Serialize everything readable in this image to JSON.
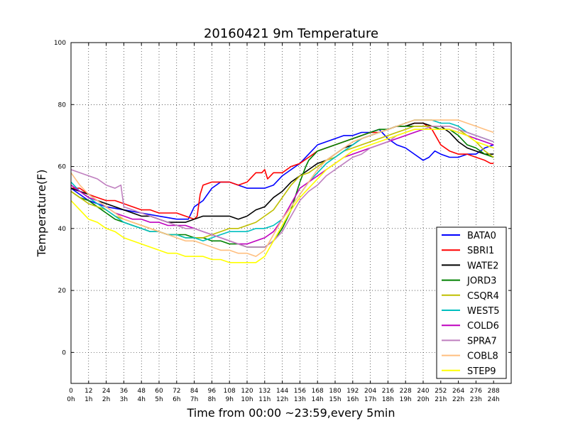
{
  "chart_data": {
    "type": "line",
    "title": "20160421 9m Temperature",
    "xlabel": "Time from 00:00 ~23:59,every 5min",
    "ylabel": "Temperature(F)",
    "xlim": [
      0,
      300
    ],
    "ylim": [
      -10,
      100
    ],
    "yticks": [
      "0",
      "20",
      "40",
      "60",
      "80",
      "100"
    ],
    "xticks": [
      {
        "value": 0,
        "line1": "0",
        "line2": "0h"
      },
      {
        "value": 12,
        "line1": "12",
        "line2": "1h"
      },
      {
        "value": 24,
        "line1": "24",
        "line2": "2h"
      },
      {
        "value": 36,
        "line1": "36",
        "line2": "3h"
      },
      {
        "value": 48,
        "line1": "48",
        "line2": "4h"
      },
      {
        "value": 60,
        "line1": "60",
        "line2": "5h"
      },
      {
        "value": 72,
        "line1": "72",
        "line2": "6h"
      },
      {
        "value": 84,
        "line1": "84",
        "line2": "7h"
      },
      {
        "value": 96,
        "line1": "96",
        "line2": "8h"
      },
      {
        "value": 108,
        "line1": "108",
        "line2": "9h"
      },
      {
        "value": 120,
        "line1": "120",
        "line2": "10h"
      },
      {
        "value": 132,
        "line1": "132",
        "line2": "11h"
      },
      {
        "value": 144,
        "line1": "144",
        "line2": "12h"
      },
      {
        "value": 156,
        "line1": "156",
        "line2": "13h"
      },
      {
        "value": 168,
        "line1": "168",
        "line2": "14h"
      },
      {
        "value": 180,
        "line1": "180",
        "line2": "15h"
      },
      {
        "value": 192,
        "line1": "192",
        "line2": "16h"
      },
      {
        "value": 204,
        "line1": "204",
        "line2": "17h"
      },
      {
        "value": 216,
        "line1": "216",
        "line2": "18h"
      },
      {
        "value": 228,
        "line1": "228",
        "line2": "19h"
      },
      {
        "value": 240,
        "line1": "240",
        "line2": "20h"
      },
      {
        "value": 252,
        "line1": "252",
        "line2": "21h"
      },
      {
        "value": 264,
        "line1": "264",
        "line2": "22h"
      },
      {
        "value": 276,
        "line1": "276",
        "line2": "23h"
      },
      {
        "value": 288,
        "line1": "288",
        "line2": "24h"
      }
    ],
    "grid": true,
    "legend_position": "lower-right",
    "series": [
      {
        "name": "BATA0",
        "color": "#0000ff",
        "x": [
          0,
          12,
          24,
          36,
          48,
          60,
          72,
          80,
          84,
          90,
          96,
          102,
          108,
          114,
          120,
          126,
          132,
          138,
          144,
          150,
          156,
          162,
          168,
          174,
          180,
          186,
          192,
          198,
          204,
          210,
          216,
          222,
          228,
          234,
          240,
          244,
          248,
          252,
          258,
          264,
          270,
          276,
          282,
          288
        ],
        "y": [
          53,
          49,
          47,
          46,
          45,
          44,
          43,
          43,
          47,
          49,
          53,
          55,
          55,
          54,
          53,
          53,
          53,
          54,
          57,
          59,
          61,
          64,
          67,
          68,
          69,
          70,
          70,
          71,
          71,
          72,
          69,
          67,
          66,
          64,
          62,
          63,
          65,
          64,
          63,
          63,
          64,
          64,
          66,
          67
        ]
      },
      {
        "name": "SBRI1",
        "color": "#ff0000",
        "x": [
          0,
          6,
          12,
          18,
          24,
          30,
          36,
          42,
          48,
          54,
          60,
          66,
          72,
          78,
          84,
          86,
          88,
          90,
          96,
          102,
          108,
          114,
          120,
          124,
          126,
          130,
          132,
          134,
          138,
          144,
          150,
          156,
          162,
          168,
          174,
          180,
          186,
          192,
          198,
          204,
          210,
          216,
          222,
          228,
          234,
          240,
          246,
          252,
          258,
          264,
          270,
          276,
          282,
          286,
          288
        ],
        "y": [
          53,
          53,
          51,
          50,
          49,
          49,
          48,
          47,
          46,
          46,
          45,
          45,
          45,
          44,
          43,
          44,
          51,
          54,
          55,
          55,
          55,
          54,
          55,
          57,
          58,
          58,
          59,
          56,
          58,
          58,
          60,
          61,
          63,
          65,
          66,
          67,
          68,
          69,
          70,
          71,
          71,
          72,
          73,
          73,
          74,
          74,
          72,
          67,
          65,
          64,
          64,
          63,
          62,
          61,
          61
        ]
      },
      {
        "name": "WATE2",
        "color": "#000000",
        "x": [
          0,
          6,
          12,
          18,
          24,
          30,
          36,
          42,
          48,
          54,
          60,
          66,
          72,
          78,
          84,
          90,
          96,
          102,
          108,
          114,
          120,
          126,
          132,
          138,
          144,
          150,
          156,
          162,
          168,
          174,
          180,
          186,
          192,
          198,
          204,
          210,
          216,
          222,
          228,
          234,
          240,
          246,
          252,
          258,
          264,
          270,
          276,
          282,
          288
        ],
        "y": [
          53,
          52,
          51,
          49,
          48,
          47,
          46,
          45,
          44,
          44,
          43,
          42,
          42,
          42,
          43,
          44,
          44,
          44,
          44,
          43,
          44,
          46,
          47,
          50,
          52,
          55,
          57,
          59,
          61,
          62,
          64,
          66,
          67,
          69,
          70,
          71,
          72,
          73,
          73,
          74,
          74,
          73,
          73,
          71,
          68,
          66,
          65,
          64,
          64
        ]
      },
      {
        "name": "JORD3",
        "color": "#008000",
        "x": [
          0,
          6,
          12,
          18,
          24,
          30,
          36,
          42,
          48,
          54,
          60,
          66,
          72,
          78,
          84,
          90,
          96,
          102,
          108,
          114,
          120,
          126,
          132,
          138,
          144,
          150,
          156,
          160,
          162,
          168,
          174,
          180,
          186,
          192,
          198,
          204,
          210,
          216,
          222,
          228,
          234,
          240,
          246,
          252,
          258,
          264,
          270,
          276,
          282,
          288
        ],
        "y": [
          52,
          50,
          49,
          47,
          45,
          43,
          42,
          41,
          40,
          39,
          39,
          38,
          38,
          38,
          37,
          37,
          36,
          36,
          35,
          35,
          34,
          34,
          34,
          36,
          40,
          46,
          55,
          60,
          62,
          65,
          66,
          67,
          68,
          69,
          70,
          71,
          72,
          72,
          73,
          73,
          73,
          73,
          73,
          72,
          72,
          70,
          67,
          66,
          64,
          63
        ]
      },
      {
        "name": "CSQR4",
        "color": "#bfbf00",
        "x": [
          0,
          6,
          12,
          18,
          24,
          30,
          36,
          42,
          48,
          54,
          60,
          66,
          72,
          78,
          84,
          90,
          96,
          102,
          108,
          114,
          120,
          126,
          132,
          138,
          144,
          150,
          156,
          162,
          168,
          174,
          180,
          186,
          192,
          198,
          204,
          210,
          216,
          222,
          228,
          234,
          240,
          246,
          252,
          258,
          264,
          270,
          276,
          282,
          288
        ],
        "y": [
          52,
          50,
          48,
          47,
          46,
          44,
          43,
          42,
          41,
          40,
          39,
          38,
          38,
          37,
          37,
          37,
          38,
          39,
          40,
          40,
          41,
          42,
          44,
          46,
          50,
          54,
          57,
          58,
          60,
          62,
          63,
          65,
          66,
          67,
          68,
          69,
          70,
          71,
          72,
          73,
          73,
          73,
          73,
          73,
          72,
          70,
          68,
          65,
          63
        ]
      },
      {
        "name": "WEST5",
        "color": "#00bfbf",
        "x": [
          0,
          6,
          12,
          18,
          24,
          30,
          36,
          42,
          48,
          54,
          60,
          66,
          72,
          78,
          84,
          90,
          96,
          102,
          108,
          114,
          120,
          126,
          132,
          138,
          144,
          150,
          156,
          162,
          168,
          174,
          180,
          186,
          192,
          198,
          204,
          210,
          216,
          222,
          228,
          234,
          240,
          246,
          252,
          258,
          264,
          270,
          276,
          282,
          288
        ],
        "y": [
          55,
          52,
          50,
          48,
          46,
          44,
          42,
          41,
          40,
          39,
          39,
          38,
          38,
          37,
          37,
          36,
          37,
          38,
          39,
          39,
          39,
          40,
          40,
          41,
          43,
          47,
          51,
          55,
          58,
          61,
          63,
          65,
          67,
          69,
          70,
          71,
          72,
          73,
          74,
          75,
          75,
          75,
          74,
          74,
          73,
          71,
          70,
          69,
          68
        ]
      },
      {
        "name": "COLD6",
        "color": "#bf00bf",
        "x": [
          0,
          6,
          12,
          18,
          24,
          30,
          36,
          42,
          48,
          54,
          60,
          66,
          72,
          78,
          84,
          90,
          96,
          102,
          108,
          114,
          120,
          126,
          132,
          138,
          144,
          150,
          156,
          162,
          168,
          174,
          180,
          186,
          192,
          198,
          204,
          210,
          216,
          222,
          228,
          234,
          240,
          246,
          252,
          258,
          264,
          270,
          276,
          282,
          288
        ],
        "y": [
          54,
          52,
          50,
          49,
          47,
          45,
          44,
          43,
          43,
          42,
          42,
          41,
          41,
          41,
          40,
          39,
          38,
          37,
          36,
          35,
          35,
          36,
          37,
          39,
          43,
          48,
          53,
          55,
          57,
          59,
          61,
          63,
          64,
          65,
          66,
          67,
          68,
          69,
          70,
          71,
          72,
          72,
          72,
          72,
          71,
          70,
          69,
          68,
          67
        ]
      },
      {
        "name": "SPRA7",
        "color": "#bf7fbf",
        "x": [
          0,
          6,
          12,
          18,
          24,
          30,
          34,
          36,
          42,
          48,
          54,
          60,
          66,
          72,
          78,
          84,
          90,
          96,
          102,
          108,
          114,
          120,
          126,
          132,
          138,
          144,
          150,
          156,
          162,
          168,
          174,
          180,
          186,
          192,
          198,
          204,
          210,
          216,
          222,
          228,
          234,
          240,
          246,
          252,
          258,
          264,
          270,
          276,
          282,
          288
        ],
        "y": [
          59,
          58,
          57,
          56,
          54,
          53,
          54,
          47,
          46,
          45,
          44,
          43,
          42,
          41,
          40,
          40,
          39,
          38,
          37,
          36,
          35,
          34,
          34,
          34,
          36,
          39,
          44,
          49,
          52,
          54,
          57,
          59,
          61,
          63,
          64,
          66,
          67,
          68,
          70,
          71,
          72,
          72,
          73,
          73,
          73,
          72,
          71,
          70,
          69,
          68
        ]
      },
      {
        "name": "COBL8",
        "color": "#ffbf7f",
        "x": [
          0,
          6,
          12,
          18,
          24,
          30,
          36,
          42,
          48,
          54,
          60,
          66,
          72,
          78,
          84,
          90,
          96,
          102,
          108,
          114,
          120,
          126,
          132,
          138,
          144,
          150,
          156,
          162,
          168,
          174,
          180,
          186,
          192,
          198,
          204,
          210,
          216,
          222,
          228,
          234,
          240,
          246,
          252,
          258,
          264,
          270,
          276,
          282,
          288
        ],
        "y": [
          58,
          54,
          51,
          49,
          47,
          45,
          43,
          42,
          41,
          40,
          39,
          38,
          37,
          36,
          36,
          35,
          34,
          33,
          33,
          32,
          32,
          31,
          33,
          38,
          43,
          47,
          51,
          55,
          59,
          62,
          64,
          66,
          68,
          69,
          70,
          71,
          72,
          73,
          74,
          75,
          75,
          75,
          75,
          75,
          75,
          74,
          73,
          72,
          71
        ]
      },
      {
        "name": "STEP9",
        "color": "#ffff00",
        "x": [
          0,
          6,
          12,
          18,
          24,
          30,
          36,
          42,
          48,
          54,
          60,
          66,
          72,
          78,
          84,
          90,
          96,
          102,
          108,
          114,
          120,
          126,
          132,
          138,
          144,
          150,
          156,
          162,
          168,
          174,
          180,
          186,
          192,
          198,
          204,
          210,
          216,
          222,
          228,
          234,
          240,
          246,
          252,
          258,
          264,
          270,
          276,
          282,
          288
        ],
        "y": [
          49,
          46,
          43,
          42,
          40,
          39,
          37,
          36,
          35,
          34,
          33,
          32,
          32,
          31,
          31,
          31,
          30,
          30,
          29,
          29,
          29,
          29,
          31,
          36,
          41,
          46,
          50,
          53,
          56,
          59,
          61,
          63,
          65,
          66,
          67,
          68,
          69,
          70,
          71,
          72,
          72,
          72,
          72,
          72,
          71,
          70,
          68,
          67,
          66
        ]
      }
    ]
  }
}
